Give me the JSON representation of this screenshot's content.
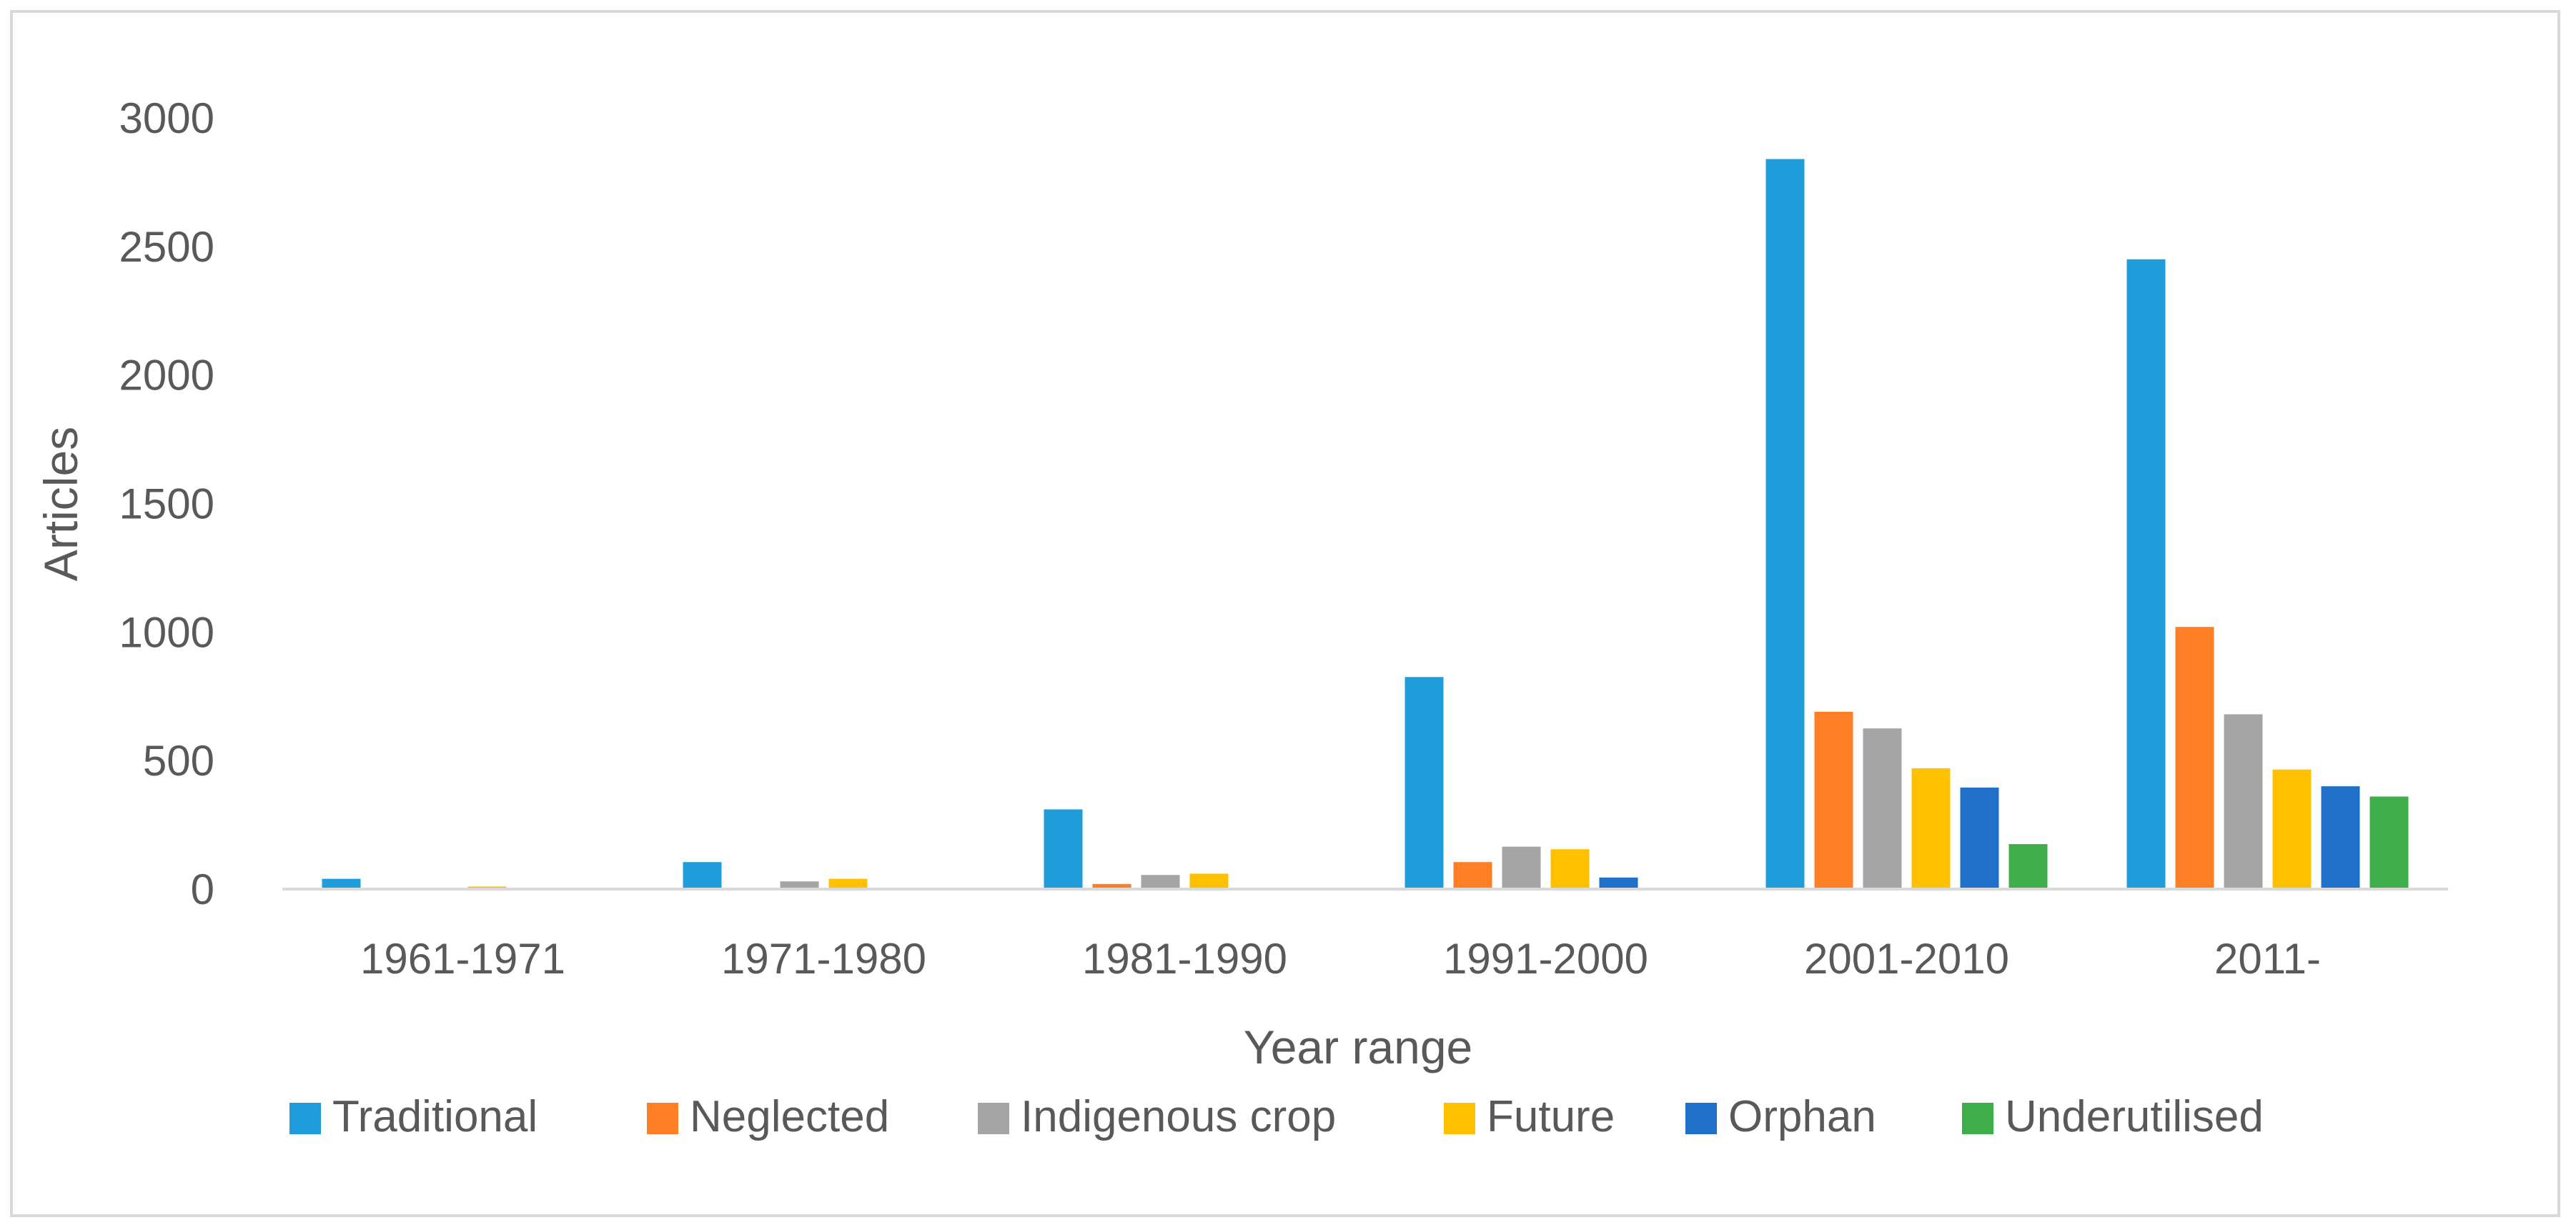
{
  "chart_data": {
    "type": "bar",
    "title": "",
    "xlabel": "Year range",
    "ylabel": "Articles",
    "categories": [
      "1961-1971",
      "1971-1980",
      "1981-1990",
      "1991-2000",
      "2001-2010",
      "2011-"
    ],
    "ylim": [
      0,
      3000
    ],
    "yticks": [
      0,
      500,
      1000,
      1500,
      2000,
      2500,
      3000
    ],
    "grid": false,
    "legend_position": "bottom",
    "series": [
      {
        "name": "Traditional",
        "color": "#1F9CDA",
        "values": [
          40,
          105,
          310,
          825,
          2840,
          2450
        ]
      },
      {
        "name": "Neglected",
        "color": "#FF7F27",
        "values": [
          2,
          3,
          20,
          105,
          690,
          1020
        ]
      },
      {
        "name": "Indigenous crop",
        "color": "#A5A5A5",
        "values": [
          3,
          30,
          55,
          165,
          625,
          680
        ]
      },
      {
        "name": "Future",
        "color": "#FFC000",
        "values": [
          10,
          40,
          60,
          155,
          470,
          465
        ]
      },
      {
        "name": "Orphan",
        "color": "#1F70C8",
        "values": [
          0,
          0,
          0,
          45,
          395,
          400
        ]
      },
      {
        "name": "Underutilised",
        "color": "#3DAE49",
        "values": [
          0,
          0,
          0,
          3,
          175,
          360
        ]
      }
    ]
  }
}
